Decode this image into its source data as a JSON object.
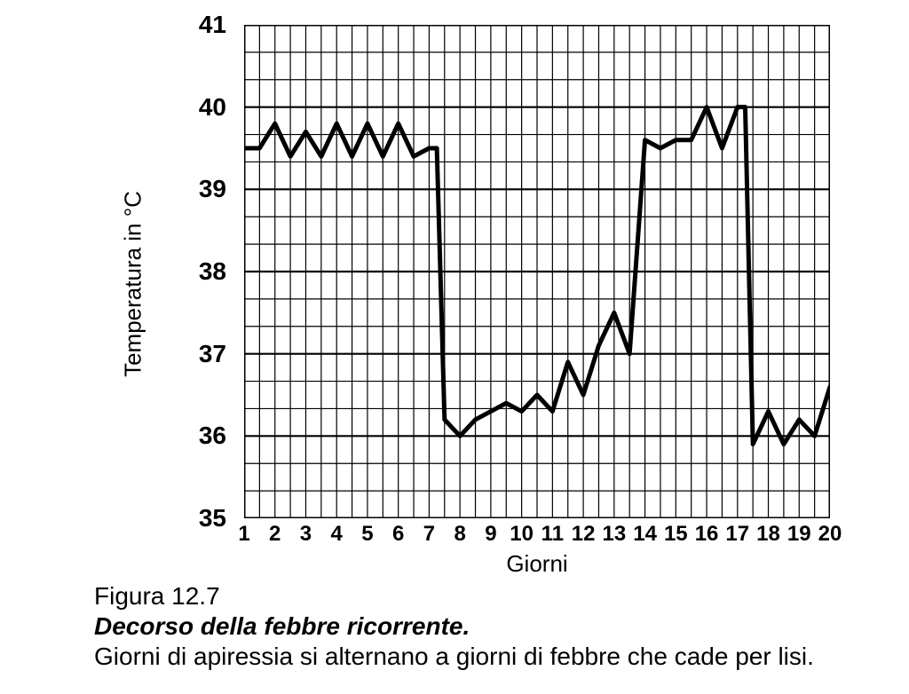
{
  "chart": {
    "type": "line",
    "background_color": "#ffffff",
    "line_color": "#000000",
    "line_width": 5,
    "border_color": "#000000",
    "border_width": 3,
    "grid_major_color": "#000000",
    "grid_major_width": 2.2,
    "grid_minor_color": "#000000",
    "grid_minor_width": 1.2,
    "x": {
      "label": "Giorni",
      "min": 1,
      "max": 20,
      "tick_step": 1,
      "ticks": [
        1,
        2,
        3,
        4,
        5,
        6,
        7,
        8,
        9,
        10,
        11,
        12,
        13,
        14,
        15,
        16,
        17,
        18,
        19,
        20
      ],
      "minor_per_major": 2,
      "label_fontsize": 26,
      "tick_fontsize": 24
    },
    "y": {
      "label": "Temperatura in °C",
      "min": 35,
      "max": 41,
      "tick_step": 1,
      "ticks": [
        35,
        36,
        37,
        38,
        39,
        40,
        41
      ],
      "minor_per_major": 3,
      "label_fontsize": 26,
      "tick_fontsize": 28
    },
    "series": {
      "x": [
        1.0,
        1.5,
        2.0,
        2.5,
        3.0,
        3.5,
        4.0,
        4.5,
        5.0,
        5.5,
        6.0,
        6.5,
        7.0,
        7.25,
        7.5,
        8.0,
        8.5,
        9.0,
        9.5,
        10.0,
        10.5,
        11.0,
        11.5,
        12.0,
        12.5,
        13.0,
        13.5,
        14.0,
        14.5,
        15.0,
        15.5,
        16.0,
        16.5,
        17.0,
        17.25,
        17.5,
        18.0,
        18.5,
        19.0,
        19.5,
        20.0
      ],
      "y": [
        39.5,
        39.5,
        39.8,
        39.4,
        39.7,
        39.4,
        39.8,
        39.4,
        39.8,
        39.4,
        39.8,
        39.4,
        39.5,
        39.5,
        36.2,
        36.0,
        36.2,
        36.3,
        36.4,
        36.3,
        36.5,
        36.3,
        36.9,
        36.5,
        37.1,
        37.5,
        37.0,
        39.6,
        39.5,
        39.6,
        39.6,
        40.0,
        39.5,
        40.0,
        40.0,
        35.9,
        36.3,
        35.9,
        36.2,
        36.0,
        36.6
      ]
    }
  },
  "caption": {
    "figure_number": "Figura 12.7",
    "title": "Decorso della febbre ricorrente.",
    "description": "Giorni di apiressia si alternano a giorni di febbre che cade per lisi."
  }
}
